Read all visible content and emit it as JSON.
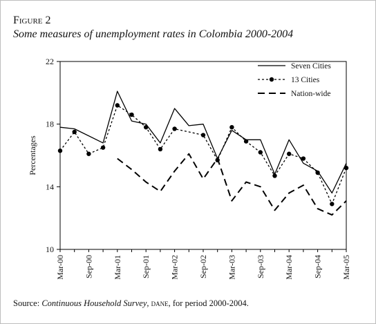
{
  "figure": {
    "label": "Figure 2",
    "title": "Some measures of unemployment rates in Colombia 2000-2004"
  },
  "source": {
    "prefix": "Source: ",
    "survey": "Continuous Household Survey",
    "sep": ", ",
    "org": "dane",
    "suffix": ",  for period 2000-2004."
  },
  "chart_data": {
    "type": "line",
    "ylabel": "Percentages",
    "ylim": [
      10,
      22
    ],
    "yticks": [
      10,
      14,
      18,
      22
    ],
    "x_range": [
      0,
      20
    ],
    "xticks": [
      {
        "x": 0,
        "label": "Mar-00"
      },
      {
        "x": 2,
        "label": "Sep-00"
      },
      {
        "x": 4,
        "label": "Mar-01"
      },
      {
        "x": 6,
        "label": "Sep-01"
      },
      {
        "x": 8,
        "label": "Mar-02"
      },
      {
        "x": 10,
        "label": "Sep-02"
      },
      {
        "x": 12,
        "label": "Mar-03"
      },
      {
        "x": 14,
        "label": "Sep-03"
      },
      {
        "x": 16,
        "label": "Mar-04"
      },
      {
        "x": 18,
        "label": "Sep-04"
      },
      {
        "x": 20,
        "label": "Mar-05"
      }
    ],
    "legend_position": "top-right",
    "series": [
      {
        "name": "Seven Cities",
        "style": "solid",
        "markers": false,
        "x": [
          0,
          1,
          3,
          4,
          5,
          6,
          7,
          8,
          9,
          10,
          11,
          12,
          13,
          14,
          15,
          16,
          17,
          18,
          19,
          20
        ],
        "values": [
          17.8,
          17.7,
          16.8,
          20.1,
          18.2,
          18.0,
          16.8,
          19.0,
          17.9,
          18.0,
          15.8,
          17.6,
          17.0,
          17.0,
          14.8,
          17.0,
          15.5,
          15.0,
          13.6,
          15.5
        ]
      },
      {
        "name": "13 Cities",
        "style": "dotted",
        "markers": true,
        "x": [
          0,
          1,
          2,
          3,
          4,
          5,
          6,
          7,
          8,
          10,
          11,
          12,
          13,
          14,
          15,
          16,
          17,
          18,
          19,
          20
        ],
        "values": [
          16.3,
          17.5,
          16.1,
          16.5,
          19.2,
          18.6,
          17.8,
          16.4,
          17.7,
          17.3,
          15.7,
          17.8,
          16.9,
          16.2,
          14.7,
          16.1,
          15.8,
          14.9,
          12.9,
          15.2
        ]
      },
      {
        "name": "Nation-wide",
        "style": "dashed",
        "markers": false,
        "x": [
          4,
          5,
          6,
          7,
          8,
          9,
          10,
          11,
          12,
          13,
          14,
          15,
          16,
          17,
          18,
          19,
          20
        ],
        "values": [
          15.8,
          15.1,
          14.3,
          13.7,
          15.0,
          16.1,
          14.5,
          15.8,
          13.1,
          14.3,
          14.0,
          12.5,
          13.6,
          14.1,
          12.6,
          12.2,
          13.1
        ]
      }
    ]
  }
}
